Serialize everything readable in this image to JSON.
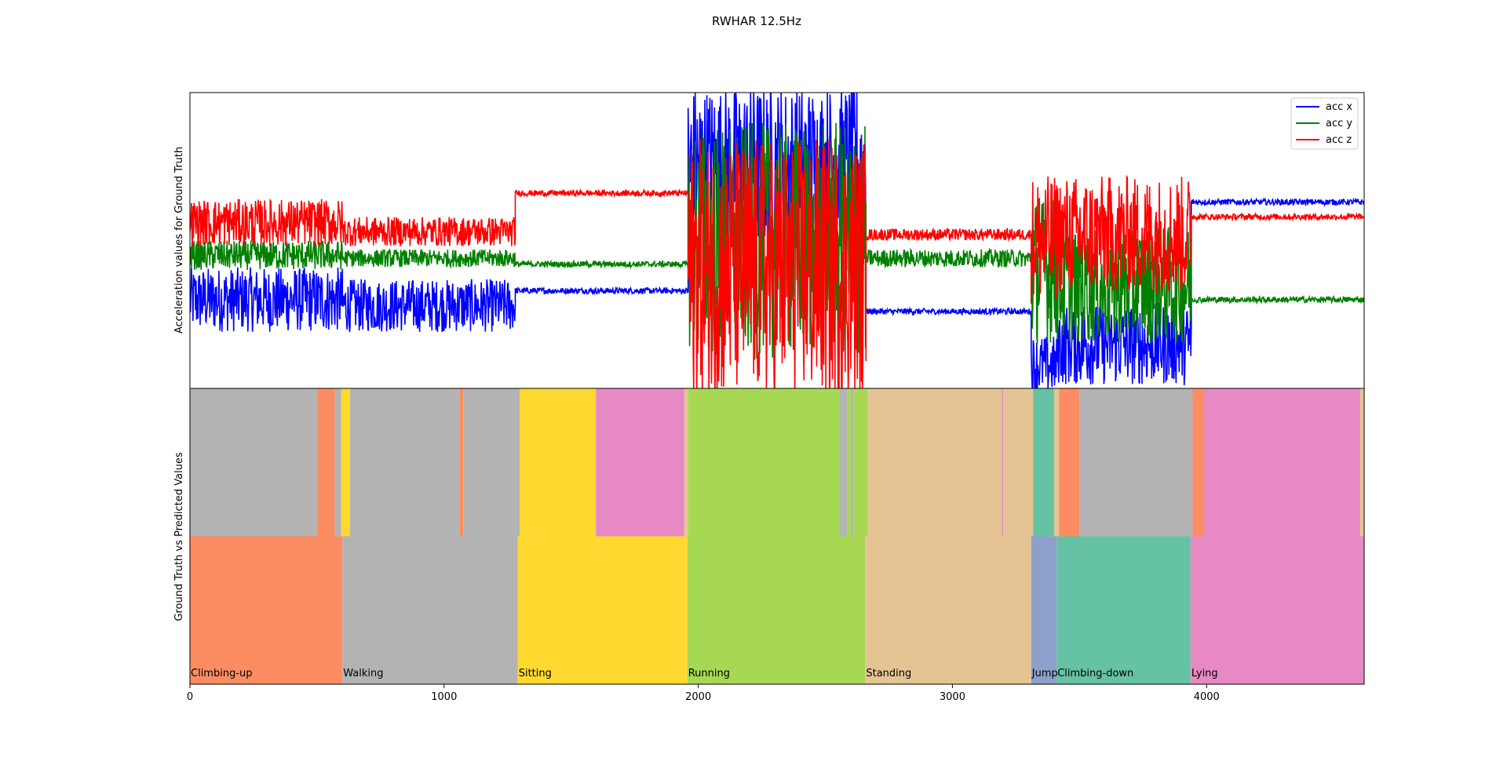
{
  "chart_data": [
    {
      "type": "line",
      "title": "RWHAR 12.5Hz",
      "ylabel": "Acceleration values for Ground Truth",
      "xlim": [
        0,
        4620
      ],
      "ylim": [
        0,
        1
      ],
      "legend_position": "top-right",
      "series": [
        {
          "name": "acc x",
          "color": "#0000ff",
          "segments": [
            {
              "from": 0,
              "to": 600,
              "level": 0.3,
              "noise": 0.11
            },
            {
              "from": 600,
              "to": 1280,
              "level": 0.28,
              "noise": 0.09
            },
            {
              "from": 1280,
              "to": 1960,
              "level": 0.33,
              "noise": 0.01
            },
            {
              "from": 1960,
              "to": 2660,
              "level": 0.75,
              "noise": 0.28
            },
            {
              "from": 2660,
              "to": 3310,
              "level": 0.26,
              "noise": 0.01
            },
            {
              "from": 3310,
              "to": 3410,
              "level": 0.08,
              "noise": 0.1
            },
            {
              "from": 3410,
              "to": 3940,
              "level": 0.15,
              "noise": 0.14
            },
            {
              "from": 3940,
              "to": 4620,
              "level": 0.63,
              "noise": 0.01
            }
          ]
        },
        {
          "name": "acc y",
          "color": "#008000",
          "segments": [
            {
              "from": 0,
              "to": 600,
              "level": 0.45,
              "noise": 0.05
            },
            {
              "from": 600,
              "to": 1280,
              "level": 0.44,
              "noise": 0.03
            },
            {
              "from": 1280,
              "to": 1960,
              "level": 0.42,
              "noise": 0.01
            },
            {
              "from": 1960,
              "to": 2660,
              "level": 0.5,
              "noise": 0.4
            },
            {
              "from": 2660,
              "to": 3310,
              "level": 0.44,
              "noise": 0.03
            },
            {
              "from": 3310,
              "to": 3410,
              "level": 0.4,
              "noise": 0.25
            },
            {
              "from": 3410,
              "to": 3940,
              "level": 0.35,
              "noise": 0.2
            },
            {
              "from": 3940,
              "to": 4620,
              "level": 0.3,
              "noise": 0.01
            }
          ]
        },
        {
          "name": "acc z",
          "color": "#ff0000",
          "segments": [
            {
              "from": 0,
              "to": 600,
              "level": 0.56,
              "noise": 0.08
            },
            {
              "from": 600,
              "to": 1280,
              "level": 0.53,
              "noise": 0.05
            },
            {
              "from": 1280,
              "to": 1960,
              "level": 0.66,
              "noise": 0.01
            },
            {
              "from": 1960,
              "to": 2660,
              "level": 0.4,
              "noise": 0.45
            },
            {
              "from": 2660,
              "to": 3310,
              "level": 0.52,
              "noise": 0.02
            },
            {
              "from": 3310,
              "to": 3410,
              "level": 0.5,
              "noise": 0.22
            },
            {
              "from": 3410,
              "to": 3940,
              "level": 0.52,
              "noise": 0.2
            },
            {
              "from": 3940,
              "to": 4620,
              "level": 0.58,
              "noise": 0.01
            }
          ]
        }
      ]
    },
    {
      "type": "heatmap",
      "ylabel": "Ground Truth vs Predicted Values",
      "xlim": [
        0,
        4620
      ],
      "xticks": [
        0,
        1000,
        2000,
        3000,
        4000
      ],
      "activities": [
        {
          "name": "Climbing-up",
          "color": "#fc8d62"
        },
        {
          "name": "Walking",
          "color": "#b3b3b3"
        },
        {
          "name": "Sitting",
          "color": "#ffd92f"
        },
        {
          "name": "Running",
          "color": "#a6d854"
        },
        {
          "name": "Standing",
          "color": "#e5c494"
        },
        {
          "name": "Jump",
          "color": "#8da0cb"
        },
        {
          "name": "Climbing-down",
          "color": "#66c2a5"
        },
        {
          "name": "Lying",
          "color": "#e78ac3"
        }
      ],
      "ground_truth": [
        {
          "activity": 0,
          "from": 0,
          "to": 600
        },
        {
          "activity": 1,
          "from": 600,
          "to": 1290
        },
        {
          "activity": 2,
          "from": 1290,
          "to": 1957
        },
        {
          "activity": 3,
          "from": 1957,
          "to": 2657
        },
        {
          "activity": 4,
          "from": 2657,
          "to": 3310
        },
        {
          "activity": 5,
          "from": 3310,
          "to": 3410
        },
        {
          "activity": 6,
          "from": 3410,
          "to": 3937
        },
        {
          "activity": 7,
          "from": 3937,
          "to": 4620
        }
      ],
      "predicted": [
        {
          "activity": 1,
          "from": 0,
          "to": 500
        },
        {
          "activity": 0,
          "from": 500,
          "to": 570
        },
        {
          "activity": 1,
          "from": 570,
          "to": 595
        },
        {
          "activity": 2,
          "from": 595,
          "to": 630
        },
        {
          "activity": 1,
          "from": 630,
          "to": 1060
        },
        {
          "activity": 0,
          "from": 1060,
          "to": 1075
        },
        {
          "activity": 1,
          "from": 1075,
          "to": 1297
        },
        {
          "activity": 2,
          "from": 1297,
          "to": 1597
        },
        {
          "activity": 7,
          "from": 1597,
          "to": 1945
        },
        {
          "activity": 4,
          "from": 1945,
          "to": 1960
        },
        {
          "activity": 3,
          "from": 1960,
          "to": 2555
        },
        {
          "activity": 1,
          "from": 2555,
          "to": 2585
        },
        {
          "activity": 3,
          "from": 2585,
          "to": 2600
        },
        {
          "activity": 1,
          "from": 2600,
          "to": 2612
        },
        {
          "activity": 3,
          "from": 2612,
          "to": 2665
        },
        {
          "activity": 4,
          "from": 2665,
          "to": 3195
        },
        {
          "activity": 7,
          "from": 3195,
          "to": 3200
        },
        {
          "activity": 4,
          "from": 3200,
          "to": 3318
        },
        {
          "activity": 6,
          "from": 3318,
          "to": 3400
        },
        {
          "activity": 4,
          "from": 3400,
          "to": 3420
        },
        {
          "activity": 0,
          "from": 3420,
          "to": 3500
        },
        {
          "activity": 1,
          "from": 3500,
          "to": 3945
        },
        {
          "activity": 0,
          "from": 3945,
          "to": 3990
        },
        {
          "activity": 7,
          "from": 3990,
          "to": 4605
        },
        {
          "activity": 4,
          "from": 4605,
          "to": 4620
        }
      ]
    }
  ]
}
